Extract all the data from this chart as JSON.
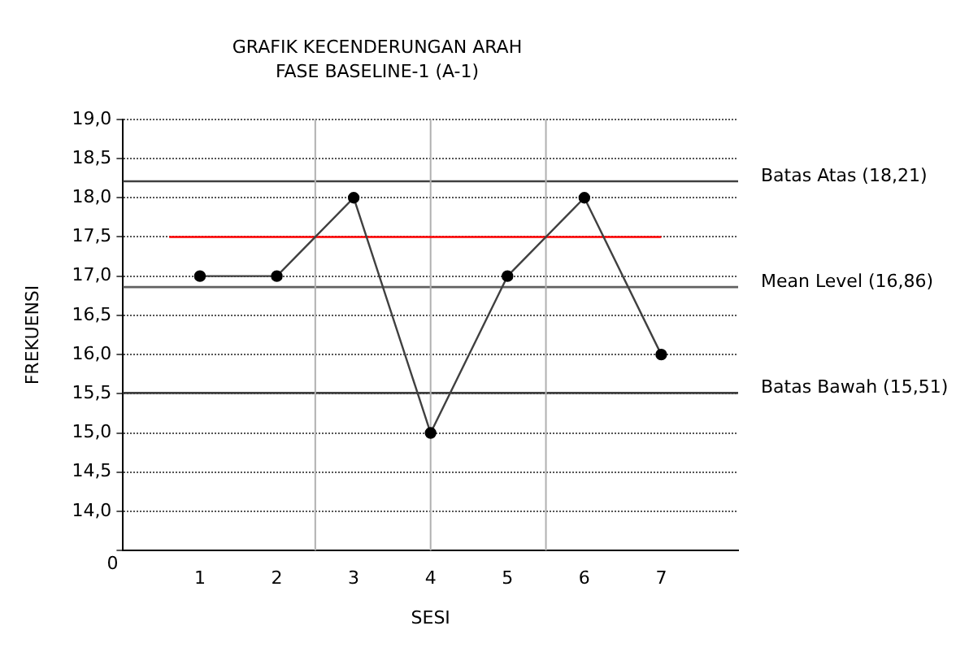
{
  "chart_data": {
    "type": "line",
    "title": "GRAFIK KECENDERUNGAN ARAH",
    "subtitle": "FASE BASELINE-1 (A-1)",
    "xlabel": "SESI",
    "ylabel": "FREKUENSI",
    "x": [
      1,
      2,
      3,
      4,
      5,
      6,
      7
    ],
    "series": [
      {
        "color": "#404040",
        "values": [
          17,
          17,
          18,
          15,
          17,
          18,
          16
        ],
        "marker": "circle"
      },
      {
        "type": "line",
        "color": "#ff0000",
        "x": [
          0.6,
          7
        ],
        "values": [
          17.5,
          17.5
        ],
        "marker": "none"
      }
    ],
    "xlim": [
      0,
      8
    ],
    "xticks": [
      1,
      2,
      3,
      4,
      5,
      6,
      7
    ],
    "ylim": [
      13.5,
      19
    ],
    "annotations": [
      "0"
    ],
    "yticks": [
      {
        "value": 13.5,
        "label": null
      },
      {
        "value": 14,
        "label": "14,0"
      },
      {
        "value": 14.5,
        "label": "14,5"
      },
      {
        "value": 15,
        "label": "15,0"
      },
      {
        "value": 15.5,
        "label": "15,5"
      },
      {
        "value": 16,
        "label": "16,0"
      },
      {
        "value": 16.5,
        "label": "16,5"
      },
      {
        "value": 17,
        "label": "17,0"
      },
      {
        "value": 17.5,
        "label": "17,5"
      },
      {
        "value": 18,
        "label": "18,0"
      },
      {
        "value": 18.5,
        "label": "18,5"
      },
      {
        "value": 19,
        "label": "19,0"
      }
    ],
    "ref_lines": [
      {
        "axis": "y",
        "value": 18.21,
        "label": "Batas Atas (18,21)",
        "color": "#404040"
      },
      {
        "axis": "y",
        "value": 16.86,
        "label": "Mean Level (16,86)",
        "color": "#606060"
      },
      {
        "axis": "y",
        "value": 15.51,
        "label": "Batas Bawah (15,51)",
        "color": "#404040"
      },
      {
        "axis": "x",
        "value": 2.5,
        "color": "#b0b0b0"
      },
      {
        "axis": "x",
        "value": 4,
        "color": "#b0b0b0"
      },
      {
        "axis": "x",
        "value": 5.5,
        "color": "#b0b0b0"
      }
    ],
    "grid": "y",
    "legend": false
  }
}
